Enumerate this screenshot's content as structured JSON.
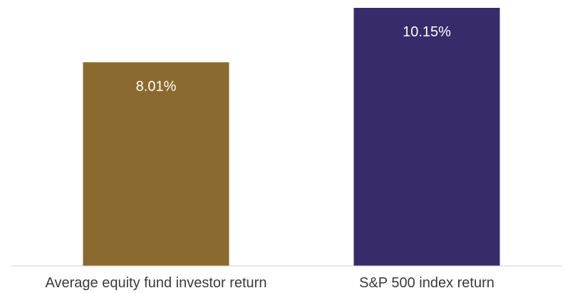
{
  "chart_data": {
    "type": "bar",
    "categories": [
      "Average equity fund investor return",
      "S&P 500 index return"
    ],
    "values": [
      8.01,
      10.15
    ],
    "data_labels": [
      "8.01%",
      "10.15%"
    ],
    "colors": [
      "#8a6a2e",
      "#372b69"
    ],
    "ylim": [
      0,
      10.15
    ],
    "grid": false,
    "legend": "none",
    "axis_color": "#cccccc",
    "text_color": "#3a3a3a"
  }
}
